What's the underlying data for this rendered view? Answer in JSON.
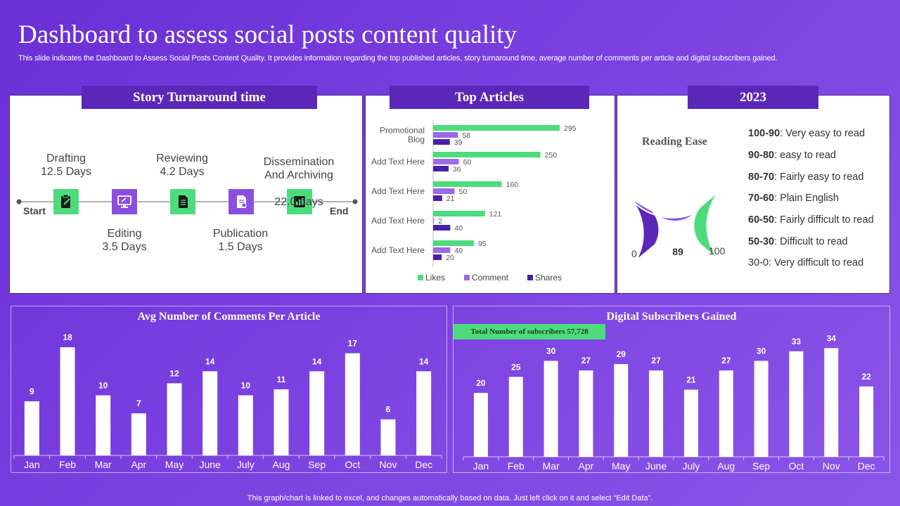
{
  "header": {
    "title": "Dashboard to assess social posts content quality",
    "subtitle": "This slide indicates the Dashboard to Assess Social Posts Content Quality. It provides information regarding the top published articles, story turnaround time, average number of comments per article and digital subscribers gained."
  },
  "turnaround": {
    "title": "Story Turnaround time",
    "start": "Start",
    "end": "End",
    "stages": [
      {
        "name": "Drafting",
        "value": "12.5 Days"
      },
      {
        "name": "Editing",
        "value": "3.5 Days"
      },
      {
        "name": "Reviewing",
        "value": "4.2 Days"
      },
      {
        "name": "Publication",
        "value": "1.5 Days"
      },
      {
        "name": "Dissemination\nAnd Archiving",
        "value": "22.0 days"
      }
    ],
    "icons": [
      "clipboard-icon",
      "monitor-icon",
      "document-icon",
      "page-icon",
      "chart-icon"
    ]
  },
  "top_articles": {
    "title": "Top Articles",
    "legend": {
      "likes": "Likes",
      "comment": "Comment",
      "shares": "Shares"
    },
    "colors": {
      "likes": "#4ddc7c",
      "comment": "#9b6ae8",
      "shares": "#4a1fa8"
    }
  },
  "reading_ease": {
    "year_title": "2023",
    "label": "Reading Ease",
    "value": 89,
    "min": "0",
    "max": "100",
    "scale": [
      {
        "range": "100-90",
        "desc": ": Very easy to read",
        "bold": true
      },
      {
        "range": "90-80",
        "desc": ": easy to read",
        "bold": true
      },
      {
        "range": "80-70",
        "desc": ": Fairly easy to read",
        "bold": true
      },
      {
        "range": "70-60",
        "desc": ": Plain English",
        "bold": true
      },
      {
        "range": "60-50",
        "desc": ": Fairly difficult to read",
        "bold": true
      },
      {
        "range": "50-30",
        "desc": ": Difficult to read",
        "bold": true
      },
      {
        "range": "30-0",
        "desc": ": Very difficult to read",
        "bold": false
      }
    ]
  },
  "subscribers": {
    "title": "Digital Subscribers Gained",
    "total_label": "Total Number of subscribers 57,728"
  },
  "comments": {
    "title": "Avg Number of Comments Per Article"
  },
  "chart_data": [
    {
      "type": "bar",
      "orientation": "horizontal",
      "title": "Top Articles",
      "categories": [
        "Promotional Blog",
        "Add Text Here",
        "Add Text Here",
        "Add Text Here",
        "Add Text Here"
      ],
      "series": [
        {
          "name": "Likes",
          "values": [
            295,
            250,
            160,
            121,
            95
          ]
        },
        {
          "name": "Comment",
          "values": [
            58,
            60,
            50,
            2,
            40
          ]
        },
        {
          "name": "Shares",
          "values": [
            39,
            36,
            21,
            40,
            20
          ]
        }
      ],
      "legend": "bottom"
    },
    {
      "type": "bar",
      "title": "Avg Number of Comments Per Article",
      "categories": [
        "Jan",
        "Feb",
        "Mar",
        "Apr",
        "May",
        "June",
        "July",
        "Aug",
        "Sep",
        "Oct",
        "Nov",
        "Dec"
      ],
      "values": [
        9,
        18,
        10,
        7,
        12,
        14,
        10,
        11,
        14,
        17,
        6,
        14
      ],
      "ylim": [
        0,
        20
      ]
    },
    {
      "type": "bar",
      "title": "Digital Subscribers Gained",
      "categories": [
        "Jan",
        "Feb",
        "Mar",
        "Apr",
        "May",
        "June",
        "July",
        "Aug",
        "Sep",
        "Oct",
        "Nov",
        "Dec"
      ],
      "values": [
        20,
        25,
        30,
        27,
        29,
        27,
        21,
        27,
        30,
        33,
        34,
        22
      ],
      "ylim": [
        0,
        40
      ]
    }
  ],
  "footer": "This graph/chart is linked to excel,  and changes automatically based on data. Just left click on it and select “Edit Data”."
}
